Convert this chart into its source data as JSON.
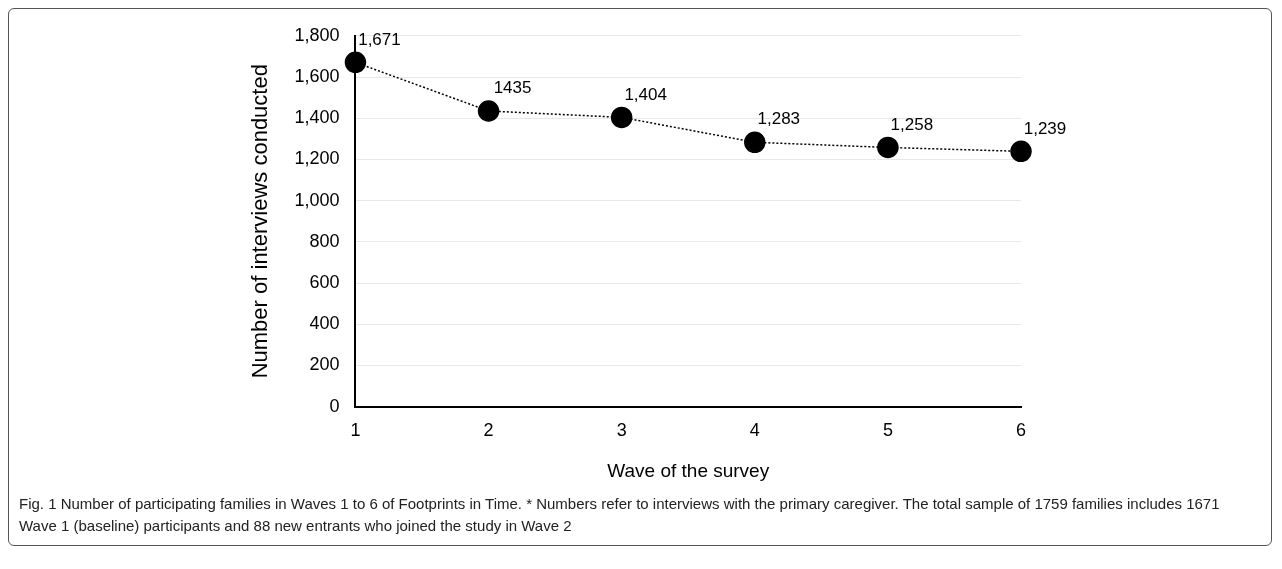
{
  "chart_data": {
    "type": "line",
    "xlabel": "Wave of the survey",
    "ylabel": "Number of interviews conducted",
    "categories": [
      "1",
      "2",
      "3",
      "4",
      "5",
      "6"
    ],
    "series": [
      {
        "color": "#000000",
        "values": [
          1671,
          1435,
          1404,
          1283,
          1258,
          1239
        ],
        "value_labels": [
          "1,671",
          "1435",
          "1,404",
          "1,283",
          "1,258",
          "1,239"
        ]
      }
    ],
    "ylim": [
      0,
      1800
    ],
    "yticks": [
      {
        "value": 0,
        "label": "0"
      },
      {
        "value": 200,
        "label": "200"
      },
      {
        "value": 400,
        "label": "400"
      },
      {
        "value": 600,
        "label": "600"
      },
      {
        "value": 800,
        "label": "800"
      },
      {
        "value": 1000,
        "label": "1,000"
      },
      {
        "value": 1200,
        "label": "1,200"
      },
      {
        "value": 1400,
        "label": "1,400"
      },
      {
        "value": 1600,
        "label": "1,600"
      },
      {
        "value": 1800,
        "label": "1,800"
      }
    ],
    "grid": "y",
    "legend": false,
    "marker": "circle",
    "line_style": "dotted",
    "annotations": [
      "Fig. 1 Number of participating families in Waves 1 to 6 of Footprints in Time. * Numbers refer to interviews with the primary caregiver. The total sample of 1759 families includes 1671 Wave 1 (baseline) participants and 88 new entrants who joined the study in Wave 2"
    ]
  }
}
